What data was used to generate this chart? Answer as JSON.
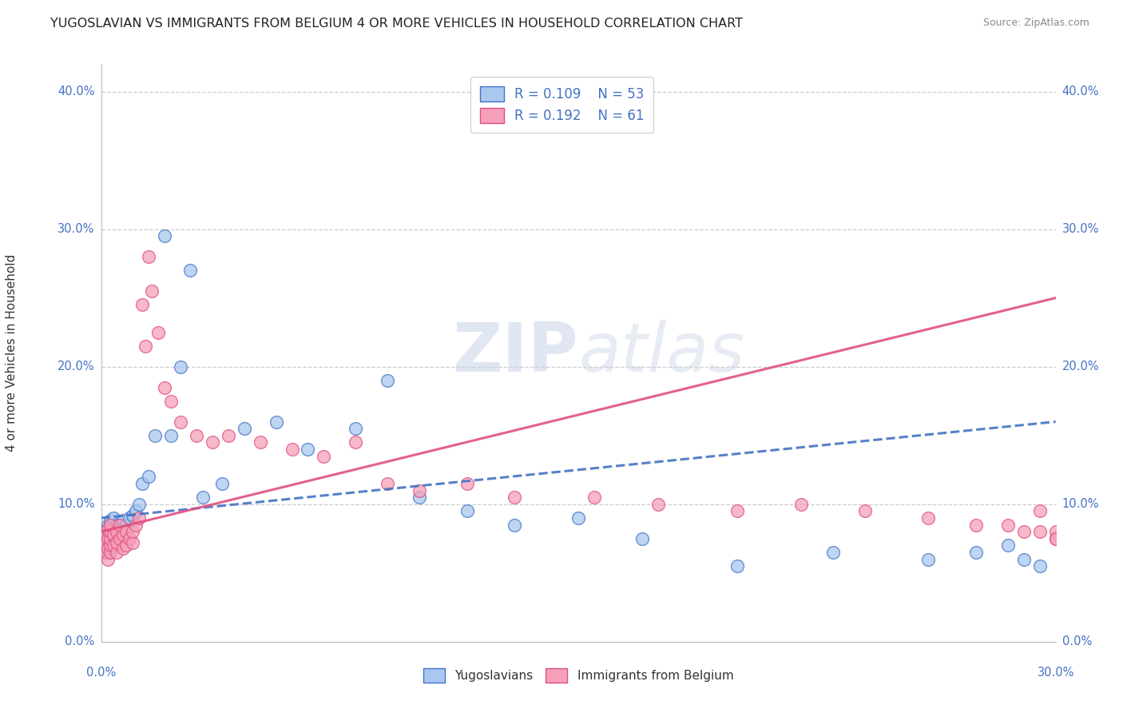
{
  "title": "YUGOSLAVIAN VS IMMIGRANTS FROM BELGIUM 4 OR MORE VEHICLES IN HOUSEHOLD CORRELATION CHART",
  "source": "Source: ZipAtlas.com",
  "ylabel": "4 or more Vehicles in Household",
  "xlim": [
    0.0,
    0.3
  ],
  "ylim": [
    0.0,
    0.42
  ],
  "legend_r1": "R = 0.109",
  "legend_n1": "N = 53",
  "legend_r2": "R = 0.192",
  "legend_n2": "N = 61",
  "color_blue": "#a8c8f0",
  "color_pink": "#f5a0b8",
  "color_blue_line": "#4472C4",
  "color_pink_line": "#e05080",
  "color_blue_dash": "#8ab0e0",
  "watermark_zip": "ZIP",
  "watermark_atlas": "atlas",
  "ytick_vals": [
    0.0,
    0.1,
    0.2,
    0.3,
    0.4
  ],
  "ytick_labels": [
    "0.0%",
    "10.0%",
    "20.0%",
    "30.0%",
    "40.0%"
  ],
  "yugoslavians_x": [
    0.001,
    0.001,
    0.001,
    0.002,
    0.002,
    0.002,
    0.002,
    0.003,
    0.003,
    0.003,
    0.003,
    0.004,
    0.004,
    0.004,
    0.004,
    0.005,
    0.005,
    0.005,
    0.006,
    0.006,
    0.007,
    0.007,
    0.008,
    0.009,
    0.01,
    0.011,
    0.012,
    0.013,
    0.015,
    0.017,
    0.02,
    0.022,
    0.025,
    0.028,
    0.032,
    0.038,
    0.045,
    0.055,
    0.065,
    0.08,
    0.09,
    0.1,
    0.115,
    0.13,
    0.15,
    0.17,
    0.2,
    0.23,
    0.26,
    0.275,
    0.285,
    0.29,
    0.295
  ],
  "yugoslavians_y": [
    0.07,
    0.075,
    0.08,
    0.065,
    0.072,
    0.078,
    0.085,
    0.068,
    0.074,
    0.08,
    0.088,
    0.072,
    0.076,
    0.082,
    0.09,
    0.07,
    0.078,
    0.085,
    0.075,
    0.082,
    0.078,
    0.088,
    0.085,
    0.09,
    0.092,
    0.095,
    0.1,
    0.115,
    0.12,
    0.15,
    0.295,
    0.15,
    0.2,
    0.27,
    0.105,
    0.115,
    0.155,
    0.16,
    0.14,
    0.155,
    0.19,
    0.105,
    0.095,
    0.085,
    0.09,
    0.075,
    0.055,
    0.065,
    0.06,
    0.065,
    0.07,
    0.06,
    0.055
  ],
  "belgium_x": [
    0.001,
    0.001,
    0.001,
    0.002,
    0.002,
    0.002,
    0.002,
    0.003,
    0.003,
    0.003,
    0.003,
    0.003,
    0.004,
    0.004,
    0.005,
    0.005,
    0.005,
    0.006,
    0.006,
    0.007,
    0.007,
    0.008,
    0.008,
    0.009,
    0.01,
    0.01,
    0.011,
    0.012,
    0.013,
    0.014,
    0.015,
    0.016,
    0.018,
    0.02,
    0.022,
    0.025,
    0.03,
    0.035,
    0.04,
    0.05,
    0.06,
    0.07,
    0.08,
    0.09,
    0.1,
    0.115,
    0.13,
    0.155,
    0.175,
    0.2,
    0.22,
    0.24,
    0.26,
    0.275,
    0.285,
    0.29,
    0.295,
    0.295,
    0.3,
    0.3,
    0.3
  ],
  "belgium_y": [
    0.065,
    0.072,
    0.078,
    0.06,
    0.068,
    0.075,
    0.082,
    0.065,
    0.07,
    0.075,
    0.08,
    0.085,
    0.07,
    0.078,
    0.065,
    0.072,
    0.08,
    0.075,
    0.085,
    0.068,
    0.078,
    0.07,
    0.08,
    0.075,
    0.072,
    0.08,
    0.085,
    0.09,
    0.245,
    0.215,
    0.28,
    0.255,
    0.225,
    0.185,
    0.175,
    0.16,
    0.15,
    0.145,
    0.15,
    0.145,
    0.14,
    0.135,
    0.145,
    0.115,
    0.11,
    0.115,
    0.105,
    0.105,
    0.1,
    0.095,
    0.1,
    0.095,
    0.09,
    0.085,
    0.085,
    0.08,
    0.095,
    0.08,
    0.08,
    0.075,
    0.075
  ]
}
